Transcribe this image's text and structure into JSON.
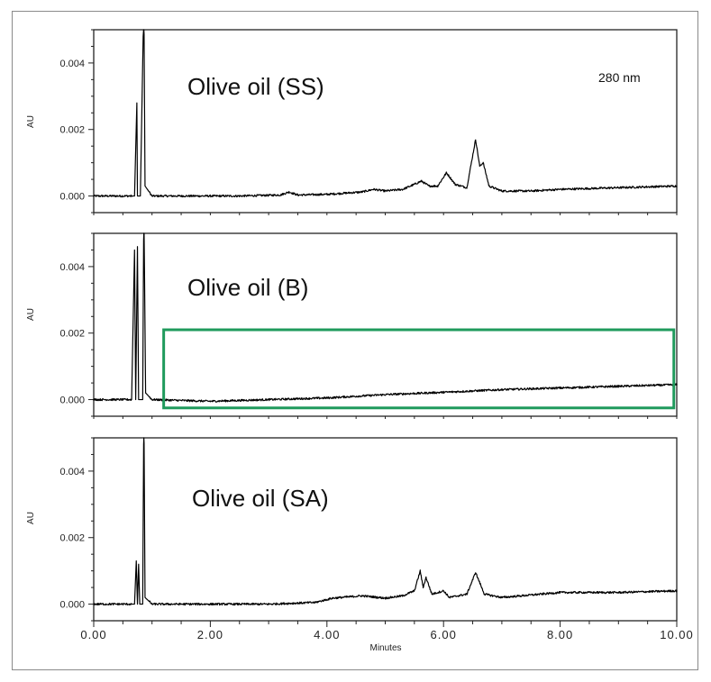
{
  "chart_data": {
    "type": "line",
    "xlabel": "Minutes",
    "xlim": [
      0,
      10
    ],
    "x_ticks": [
      0,
      2,
      4,
      6,
      8,
      10
    ],
    "x_tick_labels": [
      "0.00",
      "2.00",
      "4.00",
      "6.00",
      "8.00",
      "10.00"
    ],
    "ylim": [
      -0.0005,
      0.005
    ],
    "y_ticks": [
      0,
      0.002,
      0.004
    ],
    "y_tick_labels": [
      "0.000",
      "0.002",
      "0.004"
    ],
    "ylabel": "AU",
    "line_color": "#000000",
    "highlight_color": "#1f9a5c",
    "panels": [
      {
        "title": "Olive oil (SS)",
        "annotation": "280 nm",
        "profile": [
          [
            0.0,
            0.0
          ],
          [
            0.7,
            0.0
          ],
          [
            0.74,
            0.0028
          ],
          [
            0.75,
            0.0
          ],
          [
            0.8,
            0.0
          ],
          [
            0.86,
            0.006
          ],
          [
            0.88,
            0.0003
          ],
          [
            1.0,
            0.0
          ],
          [
            1.5,
            0.0
          ],
          [
            2.5,
            0.0
          ],
          [
            3.2,
            3e-05
          ],
          [
            3.35,
            0.00012
          ],
          [
            3.5,
            3e-05
          ],
          [
            4.0,
            5e-05
          ],
          [
            4.6,
            0.00012
          ],
          [
            4.8,
            0.0002
          ],
          [
            5.0,
            0.00015
          ],
          [
            5.3,
            0.0002
          ],
          [
            5.5,
            0.00035
          ],
          [
            5.62,
            0.00045
          ],
          [
            5.75,
            0.0003
          ],
          [
            5.9,
            0.0003
          ],
          [
            6.05,
            0.0007
          ],
          [
            6.2,
            0.00035
          ],
          [
            6.4,
            0.00025
          ],
          [
            6.55,
            0.0017
          ],
          [
            6.62,
            0.0009
          ],
          [
            6.68,
            0.001
          ],
          [
            6.78,
            0.0003
          ],
          [
            7.0,
            0.00015
          ],
          [
            7.5,
            0.00015
          ],
          [
            8.0,
            0.0002
          ],
          [
            9.0,
            0.00025
          ],
          [
            10.0,
            0.0003
          ]
        ]
      },
      {
        "title": "Olive oil (B)",
        "annotation": "",
        "highlight": {
          "x": [
            1.2,
            9.95
          ],
          "y": [
            -0.00025,
            0.0021
          ]
        },
        "profile": [
          [
            0.0,
            0.0
          ],
          [
            0.65,
            0.0
          ],
          [
            0.7,
            0.0045
          ],
          [
            0.72,
            0.0
          ],
          [
            0.75,
            0.0046
          ],
          [
            0.77,
            0.0
          ],
          [
            0.84,
            0.0
          ],
          [
            0.86,
            0.006
          ],
          [
            0.89,
            0.0002
          ],
          [
            1.0,
            0.0
          ],
          [
            2.0,
            -5e-05
          ],
          [
            3.0,
            0.0
          ],
          [
            4.0,
            5e-05
          ],
          [
            5.0,
            0.00015
          ],
          [
            6.0,
            0.00022
          ],
          [
            7.0,
            0.0003
          ],
          [
            8.0,
            0.00035
          ],
          [
            9.0,
            0.0004
          ],
          [
            10.0,
            0.00045
          ]
        ]
      },
      {
        "title": "Olive oil (SA)",
        "annotation": "",
        "profile": [
          [
            0.0,
            0.0
          ],
          [
            0.7,
            0.0
          ],
          [
            0.73,
            0.0013
          ],
          [
            0.75,
            0.0
          ],
          [
            0.77,
            0.0012
          ],
          [
            0.79,
            0.0
          ],
          [
            0.84,
            0.0
          ],
          [
            0.86,
            0.006
          ],
          [
            0.88,
            0.0002
          ],
          [
            1.0,
            0.0
          ],
          [
            2.0,
            0.0
          ],
          [
            3.0,
            0.0
          ],
          [
            3.8,
            5e-05
          ],
          [
            4.1,
            0.00018
          ],
          [
            4.6,
            0.00025
          ],
          [
            5.0,
            0.00018
          ],
          [
            5.3,
            0.00025
          ],
          [
            5.5,
            0.0004
          ],
          [
            5.6,
            0.001
          ],
          [
            5.65,
            0.0005
          ],
          [
            5.7,
            0.0008
          ],
          [
            5.8,
            0.0003
          ],
          [
            6.0,
            0.0004
          ],
          [
            6.1,
            0.0002
          ],
          [
            6.4,
            0.0003
          ],
          [
            6.55,
            0.00095
          ],
          [
            6.7,
            0.0003
          ],
          [
            7.0,
            0.0002
          ],
          [
            8.0,
            0.00035
          ],
          [
            9.0,
            0.00035
          ],
          [
            10.0,
            0.0004
          ]
        ]
      }
    ]
  }
}
